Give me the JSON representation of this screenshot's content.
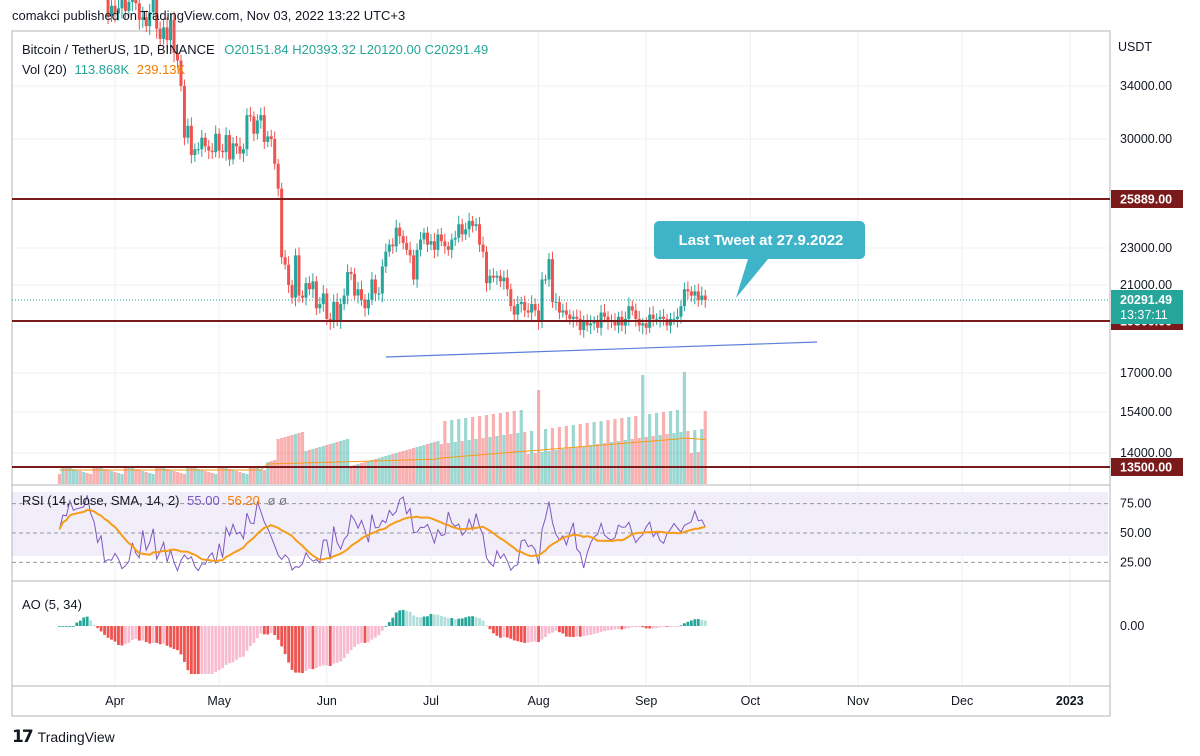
{
  "header": {
    "published": "comakci published on TradingView.com, Nov 03, 2022 13:22 UTC+3"
  },
  "legend": {
    "symbol": "Bitcoin / TetherUS, 1D, BINANCE",
    "open": "O20151.84",
    "high": "H20393.32",
    "low": "L20120.00",
    "close": "C20291.49",
    "vol_label": "Vol (20)",
    "vol_value": "113.868K",
    "vol_ma": "239.13K"
  },
  "rsi_legend": {
    "label": "RSI (14, close, SMA, 14, 2)",
    "value": "55.00",
    "ma": "56.20",
    "extra": "ø ø"
  },
  "ao_legend": {
    "label": "AO (5, 34)",
    "value": ""
  },
  "annotation": {
    "text": "Last Tweet at 27.9.2022"
  },
  "footer": {
    "brand": "TradingView"
  },
  "colors": {
    "up": "#26a69a",
    "down": "#ef5350",
    "level": "#7b1a1a",
    "rsi": "#7e57c2",
    "rsi_ma": "#f59c1a",
    "callout": "#3fb3c7",
    "trendline": "#5b7fdc"
  },
  "chart_data": {
    "type": "candlestick",
    "price_axis": {
      "unit": "USDT",
      "ticks": [
        "34000.00",
        "30000.00",
        "23000.00",
        "21000.00",
        "17000.00",
        "15400.00",
        "14000.00"
      ],
      "tick_values": [
        34000,
        30000,
        23000,
        21000,
        17000,
        15400,
        14000
      ]
    },
    "time_axis": {
      "ticks": [
        "Apr",
        "May",
        "Jun",
        "Jul",
        "Aug",
        "Sep",
        "Oct",
        "Nov",
        "Dec",
        "2023"
      ],
      "bold": [
        "2023"
      ]
    },
    "levels": [
      {
        "label": "25889.00",
        "value": 25889
      },
      {
        "label": "19300.00",
        "value": 19300
      },
      {
        "label": "13500.00",
        "value": 13500
      }
    ],
    "last_price": {
      "label": "20291.49",
      "value": 20291.49,
      "countdown": "13:37:11"
    },
    "closes": [
      41800,
      43300,
      42900,
      44500,
      46800,
      47100,
      45600,
      46400,
      45500,
      43200,
      42800,
      42300,
      43600,
      42100,
      39500,
      40300,
      39700,
      40100,
      41200,
      39900,
      40600,
      41400,
      40500,
      39200,
      39400,
      38700,
      39800,
      40800,
      38500,
      37700,
      38600,
      37600,
      39200,
      36600,
      36000,
      34000,
      30100,
      31000,
      28900,
      29300,
      29300,
      30100,
      29500,
      29200,
      29100,
      30400,
      29200,
      29100,
      30300,
      28600,
      29700,
      29500,
      29000,
      29300,
      31800,
      31700,
      30400,
      31400,
      31800,
      29800,
      30200,
      30000,
      28300,
      26600,
      22500,
      22100,
      21000,
      20400,
      22600,
      20500,
      20400,
      21100,
      20800,
      21200,
      19900,
      20100,
      20600,
      19400,
      19300,
      20200,
      19300,
      20100,
      20500,
      21700,
      21600,
      20500,
      20800,
      20300,
      19900,
      20300,
      21300,
      20600,
      20600,
      22000,
      22800,
      23200,
      23100,
      24200,
      23700,
      23300,
      22900,
      22600,
      21300,
      22900,
      23500,
      23900,
      23200,
      23400,
      22900,
      23800,
      23400,
      23100,
      22900,
      23500,
      23600,
      24400,
      23800,
      24100,
      24600,
      24300,
      24400,
      23200,
      22800,
      21100,
      21500,
      21400,
      21500,
      21200,
      21400,
      20800,
      20000,
      19600,
      20100,
      20200,
      19800,
      19700,
      20100,
      19800,
      19300,
      21300,
      21300,
      22400,
      20200,
      20200,
      19700,
      19800,
      19600,
      19400,
      19500,
      19400,
      18900,
      19300,
      19100,
      19200,
      19300,
      19000,
      19700,
      19500,
      19300,
      19300,
      19100,
      19500,
      19100,
      19400,
      20000,
      19800,
      19400,
      19100,
      19200,
      19000,
      19600,
      19400,
      19400,
      19500,
      19400,
      19100,
      19400,
      19400,
      19500,
      20000,
      20800,
      20700,
      20500,
      20700,
      20300,
      20500,
      20291
    ],
    "annotation_date": "27.9.2022"
  },
  "rsi": {
    "levels": [
      {
        "label": "75.00",
        "value": 75
      },
      {
        "label": "50.00",
        "value": 50
      },
      {
        "label": "25.00",
        "value": 25
      }
    ]
  },
  "ao": {
    "levels": [
      {
        "label": "0.00",
        "value": 0
      }
    ]
  }
}
